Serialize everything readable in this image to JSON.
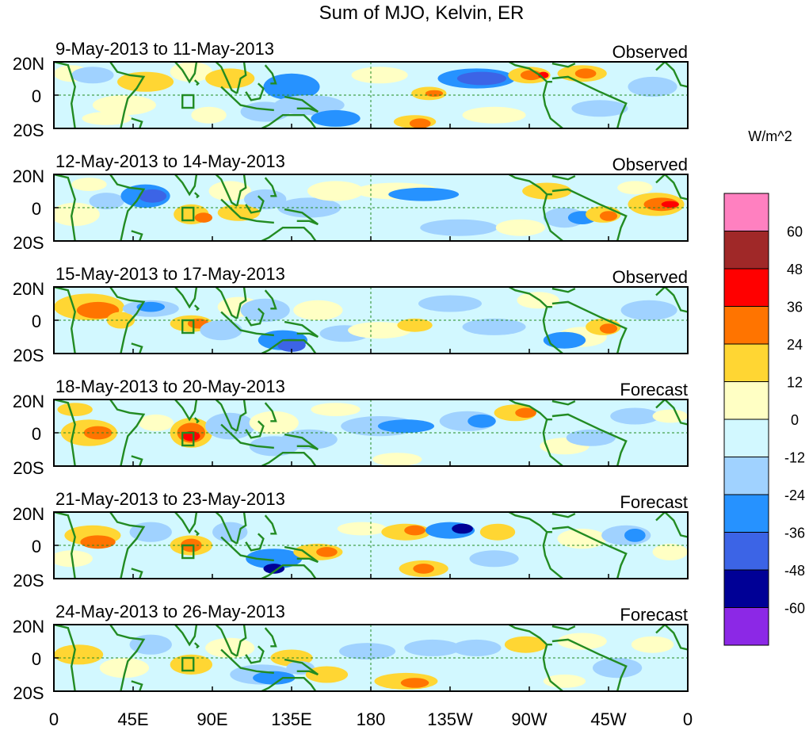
{
  "title": "Sum of MJO, Kelvin, ER",
  "units": "W/m^2",
  "y_axis": {
    "labels": [
      "20N",
      "0",
      "20S"
    ]
  },
  "x_axis": {
    "labels": [
      "0",
      "45E",
      "90E",
      "135E",
      "180",
      "135W",
      "90W",
      "45W",
      "0"
    ]
  },
  "panels": [
    {
      "date_range": "9-May-2013 to 11-May-2013",
      "status": "Observed"
    },
    {
      "date_range": "12-May-2013 to 14-May-2013",
      "status": "Observed"
    },
    {
      "date_range": "15-May-2013 to 17-May-2013",
      "status": "Observed"
    },
    {
      "date_range": "18-May-2013 to 20-May-2013",
      "status": "Forecast"
    },
    {
      "date_range": "21-May-2013 to 23-May-2013",
      "status": "Forecast"
    },
    {
      "date_range": "24-May-2013 to 26-May-2013",
      "status": "Forecast"
    }
  ],
  "colorbar": {
    "levels": [
      {
        "label": "",
        "color": "#ff80c0"
      },
      {
        "label": "60",
        "color": "#a02828"
      },
      {
        "label": "48",
        "color": "#ff0000"
      },
      {
        "label": "36",
        "color": "#ff7400"
      },
      {
        "label": "24",
        "color": "#ffd633"
      },
      {
        "label": "12",
        "color": "#ffffc4"
      },
      {
        "label": "0",
        "color": "#d2f8ff"
      },
      {
        "label": "-12",
        "color": "#a0d2ff"
      },
      {
        "label": "-24",
        "color": "#2692ff"
      },
      {
        "label": "-36",
        "color": "#3c64e6"
      },
      {
        "label": "-48",
        "color": "#000096"
      },
      {
        "label": "-60",
        "color": "#8c28e6"
      }
    ]
  },
  "colors": {
    "coastline": "#228b22",
    "dashed_line": "#228b22",
    "frame": "#000000"
  }
}
